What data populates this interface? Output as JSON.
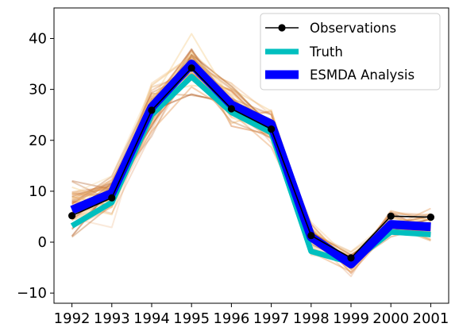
{
  "chart_data": {
    "type": "line",
    "x": [
      1992,
      1993,
      1994,
      1995,
      1996,
      1997,
      1998,
      1999,
      2000,
      2001
    ],
    "x_tick_labels": [
      "1992",
      "1993",
      "1994",
      "1995",
      "1996",
      "1997",
      "1998",
      "1999",
      "2000",
      "2001"
    ],
    "y_ticks": [
      -10,
      0,
      10,
      20,
      30,
      40
    ],
    "y_tick_labels": [
      "−10",
      "0",
      "10",
      "20",
      "30",
      "40"
    ],
    "xlim": [
      1991.55,
      2001.45
    ],
    "ylim": [
      -12,
      46
    ],
    "title": "",
    "xlabel": "",
    "ylabel": "",
    "grid": false,
    "legend_position": "top-right",
    "series": [
      {
        "name": "Observations",
        "color": "#000000",
        "marker": "circle",
        "values": [
          5.2,
          8.7,
          25.9,
          34.2,
          26.2,
          22.2,
          1.3,
          -3.1,
          5.1,
          4.9
        ]
      },
      {
        "name": "Truth",
        "color": "#00bfbf",
        "values": [
          3.2,
          7.8,
          25.0,
          32.5,
          25.5,
          21.5,
          -1.8,
          -4.0,
          2.0,
          1.5
        ]
      },
      {
        "name": "ESMDA Analysis",
        "color": "#0000ff",
        "values": [
          6.3,
          9.6,
          26.5,
          35.0,
          27.0,
          23.2,
          1.0,
          -4.3,
          3.5,
          3.0
        ]
      }
    ],
    "ensemble": {
      "member_count": 45,
      "colors": [
        "#d2691e",
        "#e8a060",
        "#f0c080",
        "#b05a20",
        "#c8824a",
        "#f5d090"
      ],
      "mean": [
        7.0,
        9.5,
        26.0,
        35.0,
        27.0,
        23.0,
        1.0,
        -4.0,
        3.5,
        3.0
      ],
      "spread": [
        4.0,
        3.0,
        3.5,
        3.5,
        3.0,
        2.5,
        2.5,
        1.8,
        1.8,
        1.8
      ]
    }
  }
}
